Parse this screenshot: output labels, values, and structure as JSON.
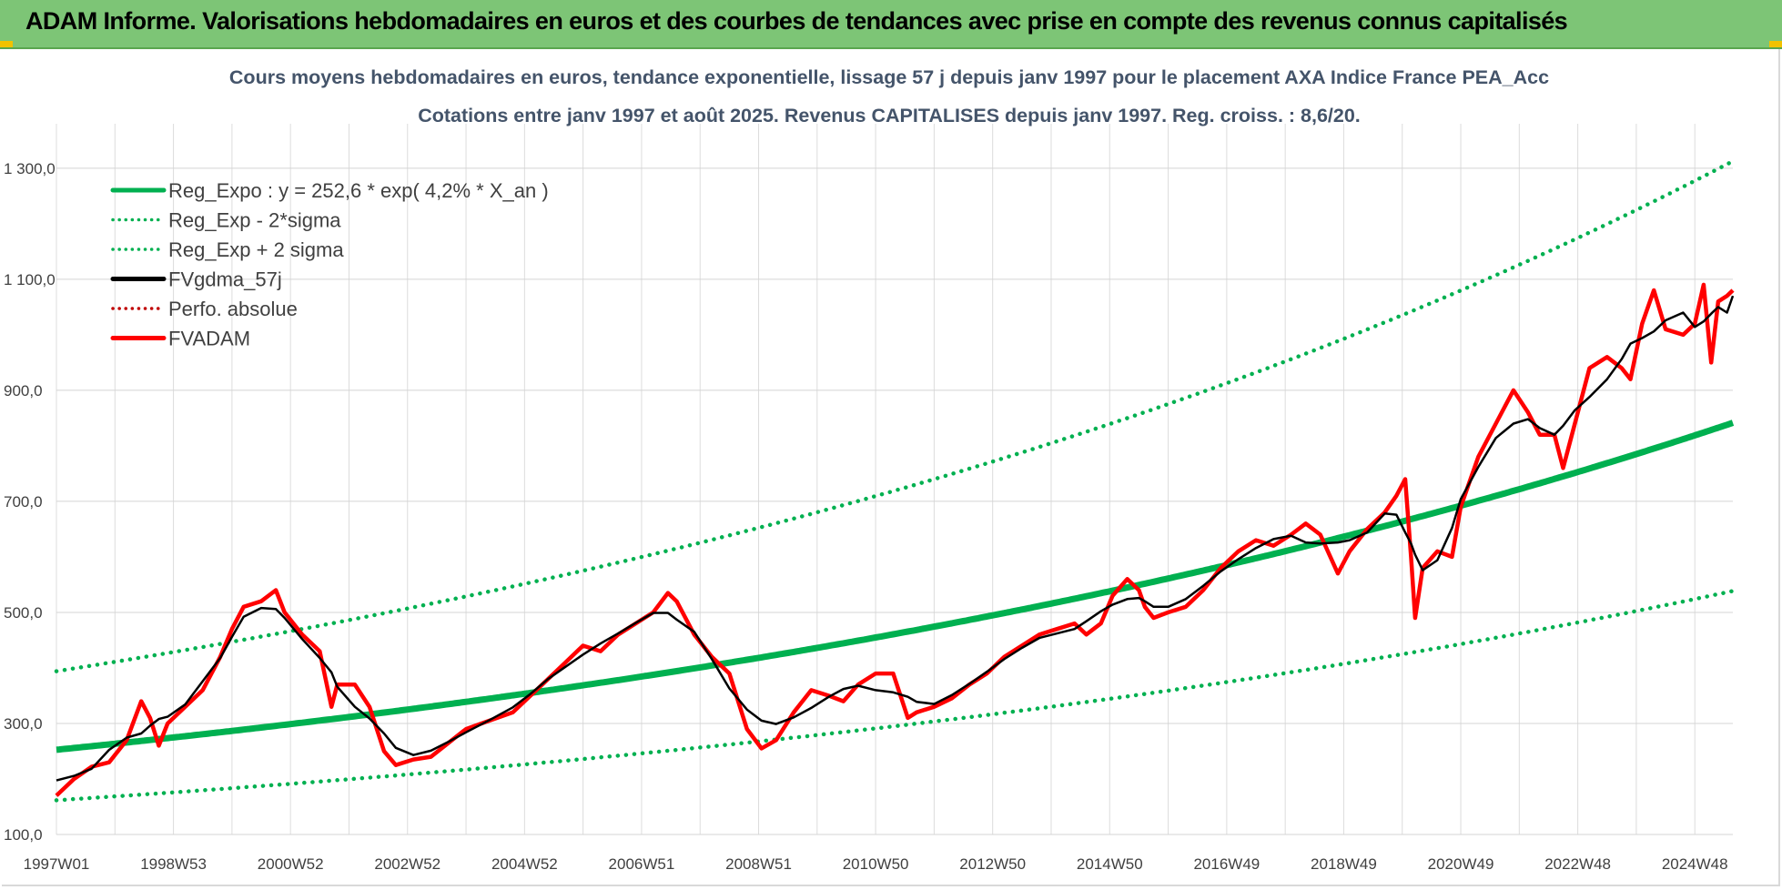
{
  "header": {
    "title": "ADAM Informe. Valorisations hebdomadaires en euros et des courbes de tendances avec prise en compte des revenus connus capitalisés"
  },
  "colors": {
    "banner": "#7dc576",
    "reg_expo": "#00b050",
    "fvgdma": "#000000",
    "fvadam": "#ff0000",
    "perfo": "#c00000"
  },
  "chart_data": {
    "type": "line",
    "title": "Cours moyens hebdomadaires en euros, tendance exponentielle, lissage 57 j depuis janv 1997 pour le placement AXA Indice France PEA_Acc",
    "subtitle": "Cotations entre janv 1997 et août 2025. Revenus CAPITALISES depuis janv 1997. Reg. croiss. : 8,6/20.",
    "xlabel": "",
    "ylabel": "",
    "x_range": [
      1997.0,
      2025.65
    ],
    "ylim": [
      100,
      1380
    ],
    "y_ticks": [
      100,
      300,
      500,
      700,
      900,
      1100,
      1300
    ],
    "y_tick_labels": [
      "100,0",
      "300,0",
      "500,0",
      "700,0",
      "900,0",
      "1 100,0",
      "1 300,0"
    ],
    "x_tick_labels": [
      "1997W01",
      "1998W53",
      "2000W52",
      "2002W52",
      "2004W52",
      "2006W51",
      "2008W51",
      "2010W50",
      "2012W50",
      "2014W50",
      "2016W49",
      "2018W49",
      "2020W49",
      "2022W48",
      "2024W48"
    ],
    "x_tick_years": [
      1997.0,
      1999.0,
      2001.0,
      2003.0,
      2005.0,
      2007.0,
      2009.0,
      2011.0,
      2013.0,
      2015.0,
      2017.0,
      2019.0,
      2021.0,
      2023.0,
      2025.0
    ],
    "grid": true,
    "legend_position": "top-left",
    "legend": [
      {
        "label": "Reg_Expo : y = 252,6 * exp( 4,2% *  X_an )",
        "style": "solid",
        "color": "#00b050"
      },
      {
        "label": "Reg_Exp - 2*sigma",
        "style": "dotted",
        "color": "#00b050"
      },
      {
        "label": "Reg_Exp + 2 sigma",
        "style": "dotted",
        "color": "#00b050"
      },
      {
        "label": "FVgdma_57j",
        "style": "solid",
        "color": "#000000"
      },
      {
        "label": "Perfo. absolue",
        "style": "dotted",
        "color": "#c00000"
      },
      {
        "label": "FVADAM",
        "style": "solid",
        "color": "#ff0000"
      }
    ],
    "regression": {
      "a": 252.6,
      "rate": 0.042,
      "lower_factor": 0.64,
      "upper_factor": 1.56
    },
    "series": [
      {
        "name": "FVADAM",
        "points": [
          [
            1997.0,
            170
          ],
          [
            1997.3,
            200
          ],
          [
            1997.6,
            222
          ],
          [
            1997.9,
            230
          ],
          [
            1998.2,
            270
          ],
          [
            1998.45,
            340
          ],
          [
            1998.6,
            310
          ],
          [
            1998.75,
            260
          ],
          [
            1998.9,
            300
          ],
          [
            1999.2,
            330
          ],
          [
            1999.5,
            360
          ],
          [
            1999.8,
            420
          ],
          [
            2000.0,
            470
          ],
          [
            2000.2,
            510
          ],
          [
            2000.5,
            520
          ],
          [
            2000.75,
            540
          ],
          [
            2000.9,
            500
          ],
          [
            2001.2,
            460
          ],
          [
            2001.5,
            430
          ],
          [
            2001.7,
            330
          ],
          [
            2001.8,
            370
          ],
          [
            2002.1,
            370
          ],
          [
            2002.35,
            330
          ],
          [
            2002.6,
            250
          ],
          [
            2002.8,
            225
          ],
          [
            2003.1,
            235
          ],
          [
            2003.4,
            240
          ],
          [
            2003.7,
            265
          ],
          [
            2004.0,
            290
          ],
          [
            2004.4,
            305
          ],
          [
            2004.8,
            320
          ],
          [
            2005.1,
            350
          ],
          [
            2005.4,
            380
          ],
          [
            2005.7,
            410
          ],
          [
            2006.0,
            440
          ],
          [
            2006.3,
            430
          ],
          [
            2006.6,
            460
          ],
          [
            2006.9,
            480
          ],
          [
            2007.2,
            500
          ],
          [
            2007.45,
            535
          ],
          [
            2007.6,
            520
          ],
          [
            2007.9,
            460
          ],
          [
            2008.2,
            420
          ],
          [
            2008.5,
            390
          ],
          [
            2008.8,
            290
          ],
          [
            2009.05,
            255
          ],
          [
            2009.3,
            270
          ],
          [
            2009.6,
            320
          ],
          [
            2009.9,
            360
          ],
          [
            2010.2,
            350
          ],
          [
            2010.45,
            340
          ],
          [
            2010.7,
            370
          ],
          [
            2011.0,
            390
          ],
          [
            2011.3,
            390
          ],
          [
            2011.55,
            310
          ],
          [
            2011.7,
            320
          ],
          [
            2012.0,
            330
          ],
          [
            2012.3,
            345
          ],
          [
            2012.6,
            370
          ],
          [
            2012.9,
            390
          ],
          [
            2013.2,
            420
          ],
          [
            2013.5,
            440
          ],
          [
            2013.8,
            460
          ],
          [
            2014.1,
            470
          ],
          [
            2014.4,
            480
          ],
          [
            2014.6,
            460
          ],
          [
            2014.85,
            480
          ],
          [
            2015.05,
            530
          ],
          [
            2015.3,
            560
          ],
          [
            2015.5,
            540
          ],
          [
            2015.6,
            510
          ],
          [
            2015.75,
            490
          ],
          [
            2016.0,
            500
          ],
          [
            2016.3,
            510
          ],
          [
            2016.6,
            540
          ],
          [
            2016.9,
            580
          ],
          [
            2017.2,
            610
          ],
          [
            2017.5,
            630
          ],
          [
            2017.8,
            620
          ],
          [
            2018.1,
            640
          ],
          [
            2018.35,
            660
          ],
          [
            2018.6,
            640
          ],
          [
            2018.9,
            570
          ],
          [
            2019.1,
            610
          ],
          [
            2019.4,
            650
          ],
          [
            2019.7,
            680
          ],
          [
            2019.9,
            710
          ],
          [
            2020.05,
            740
          ],
          [
            2020.15,
            600
          ],
          [
            2020.22,
            490
          ],
          [
            2020.35,
            580
          ],
          [
            2020.6,
            610
          ],
          [
            2020.85,
            600
          ],
          [
            2021.0,
            690
          ],
          [
            2021.3,
            780
          ],
          [
            2021.6,
            840
          ],
          [
            2021.9,
            900
          ],
          [
            2022.15,
            860
          ],
          [
            2022.35,
            820
          ],
          [
            2022.6,
            820
          ],
          [
            2022.75,
            760
          ],
          [
            2022.95,
            840
          ],
          [
            2023.2,
            940
          ],
          [
            2023.5,
            960
          ],
          [
            2023.75,
            940
          ],
          [
            2023.9,
            920
          ],
          [
            2024.1,
            1020
          ],
          [
            2024.3,
            1080
          ],
          [
            2024.5,
            1010
          ],
          [
            2024.8,
            1000
          ],
          [
            2025.0,
            1020
          ],
          [
            2025.15,
            1090
          ],
          [
            2025.28,
            950
          ],
          [
            2025.4,
            1060
          ],
          [
            2025.55,
            1070
          ],
          [
            2025.65,
            1080
          ]
        ]
      }
    ]
  }
}
